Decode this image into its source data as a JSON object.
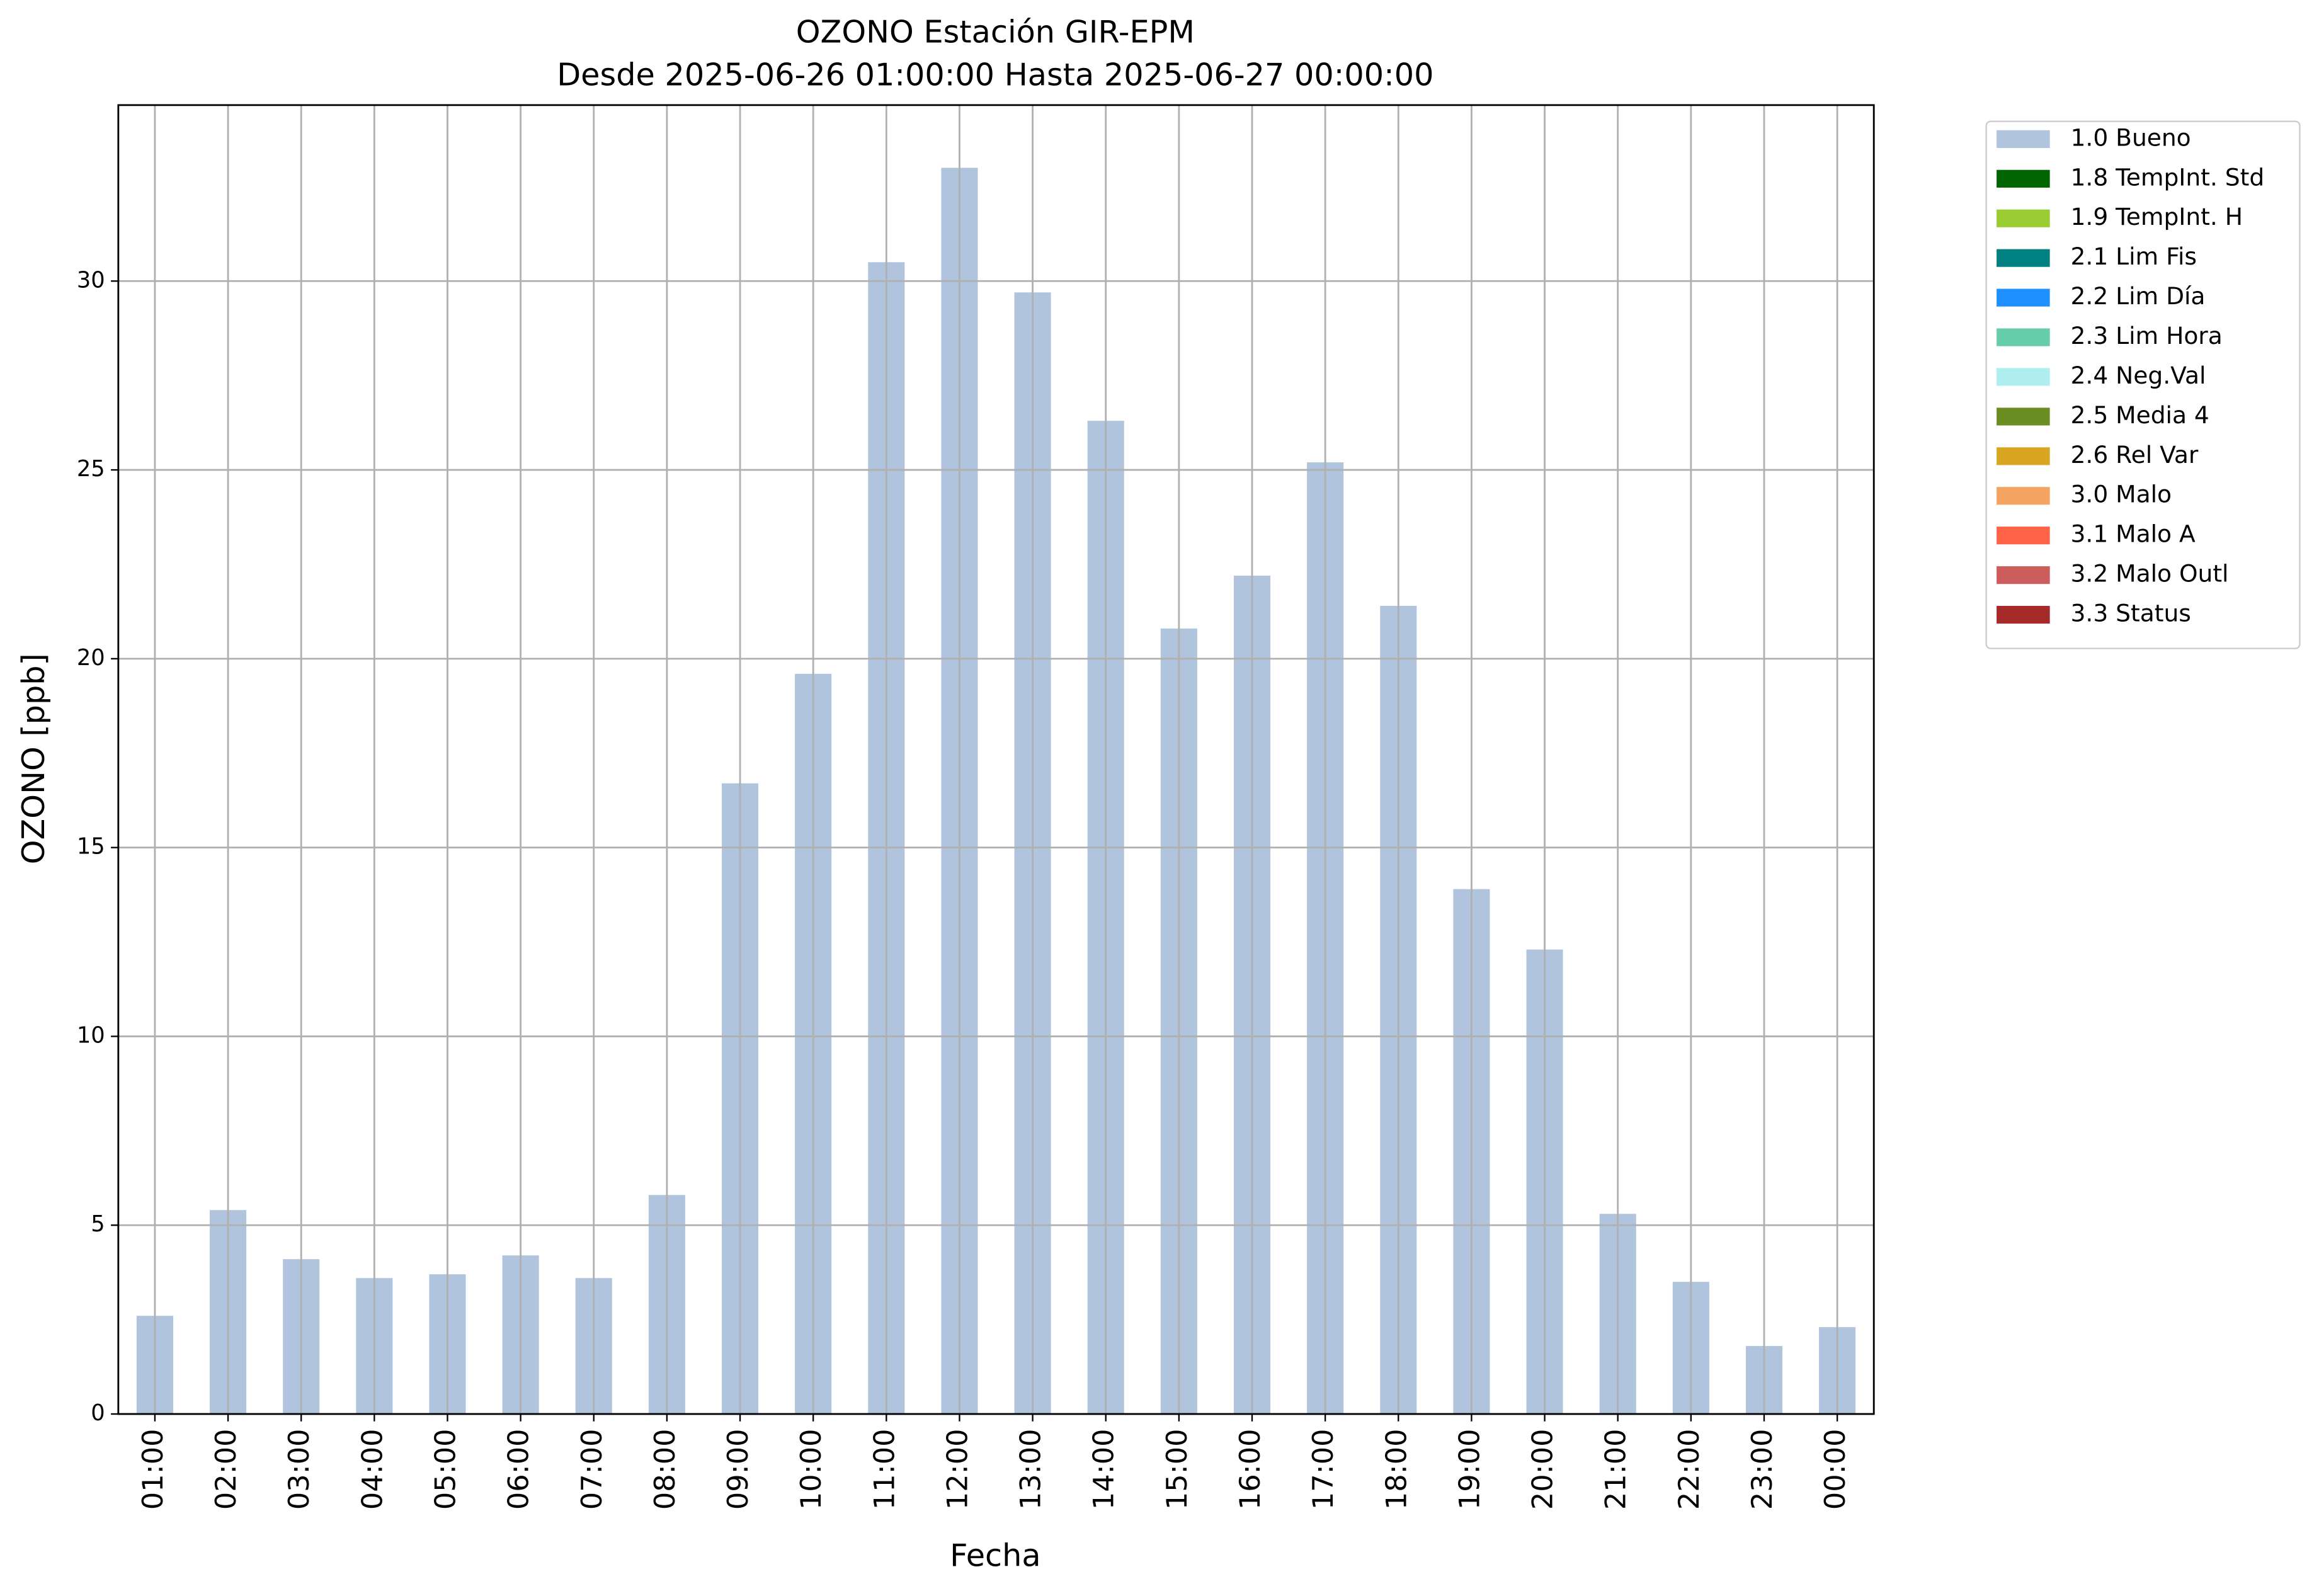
{
  "chart_data": {
    "type": "stacked_bar",
    "title": "OZONO Estación GIR-EPM",
    "subtitle": "Desde 2025-06-26 01:00:00 Hasta 2025-06-27 00:00:00",
    "x_label": "Fecha",
    "y_label": "OZONO [ppb]",
    "categories": [
      "01:00",
      "02:00",
      "03:00",
      "04:00",
      "05:00",
      "06:00",
      "07:00",
      "08:00",
      "09:00",
      "10:00",
      "11:00",
      "12:00",
      "13:00",
      "14:00",
      "15:00",
      "16:00",
      "17:00",
      "18:00",
      "19:00",
      "20:00",
      "21:00",
      "22:00",
      "23:00",
      "00:00"
    ],
    "series": [
      {
        "name": "1.0 Bueno",
        "color": "#b0c4de",
        "values": [
          2.6,
          5.4,
          4.1,
          3.6,
          3.7,
          4.2,
          3.6,
          5.8,
          16.7,
          19.6,
          30.5,
          33.0,
          29.7,
          26.3,
          20.8,
          22.2,
          25.2,
          21.4,
          13.9,
          12.3,
          5.3,
          3.5,
          1.8,
          2.3
        ]
      },
      {
        "name": "1.8 TempInt. Std",
        "color": "#006400",
        "values": [
          0,
          0,
          0,
          0,
          0,
          0,
          0,
          0,
          0,
          0,
          0,
          0,
          0,
          0,
          0,
          0,
          0,
          0,
          0,
          0,
          0,
          0,
          0,
          0
        ]
      },
      {
        "name": "1.9 TempInt. H",
        "color": "#9acd32",
        "values": [
          0,
          0,
          0,
          0,
          0,
          0,
          0,
          0,
          0,
          0,
          0,
          0,
          0,
          0,
          0,
          0,
          0,
          0,
          0,
          0,
          0,
          0,
          0,
          0
        ]
      },
      {
        "name": "2.1 Lim Fis",
        "color": "#008080",
        "values": [
          0,
          0,
          0,
          0,
          0,
          0,
          0,
          0,
          0,
          0,
          0,
          0,
          0,
          0,
          0,
          0,
          0,
          0,
          0,
          0,
          0,
          0,
          0,
          0
        ]
      },
      {
        "name": "2.2 Lim Día",
        "color": "#1e90ff",
        "values": [
          0,
          0,
          0,
          0,
          0,
          0,
          0,
          0,
          0,
          0,
          0,
          0,
          0,
          0,
          0,
          0,
          0,
          0,
          0,
          0,
          0,
          0,
          0,
          0
        ]
      },
      {
        "name": "2.3 Lim Hora",
        "color": "#66cdaa",
        "values": [
          0,
          0,
          0,
          0,
          0,
          0,
          0,
          0,
          0,
          0,
          0,
          0,
          0,
          0,
          0,
          0,
          0,
          0,
          0,
          0,
          0,
          0,
          0,
          0
        ]
      },
      {
        "name": "2.4 Neg.Val",
        "color": "#afeeee",
        "values": [
          0,
          0,
          0,
          0,
          0,
          0,
          0,
          0,
          0,
          0,
          0,
          0,
          0,
          0,
          0,
          0,
          0,
          0,
          0,
          0,
          0,
          0,
          0,
          0
        ]
      },
      {
        "name": "2.5 Media 4",
        "color": "#6b8e23",
        "values": [
          0,
          0,
          0,
          0,
          0,
          0,
          0,
          0,
          0,
          0,
          0,
          0,
          0,
          0,
          0,
          0,
          0,
          0,
          0,
          0,
          0,
          0,
          0,
          0
        ]
      },
      {
        "name": "2.6 Rel Var",
        "color": "#daa520",
        "values": [
          0,
          0,
          0,
          0,
          0,
          0,
          0,
          0,
          0,
          0,
          0,
          0,
          0,
          0,
          0,
          0,
          0,
          0,
          0,
          0,
          0,
          0,
          0,
          0
        ]
      },
      {
        "name": "3.0 Malo",
        "color": "#f4a460",
        "values": [
          0,
          0,
          0,
          0,
          0,
          0,
          0,
          0,
          0,
          0,
          0,
          0,
          0,
          0,
          0,
          0,
          0,
          0,
          0,
          0,
          0,
          0,
          0,
          0
        ]
      },
      {
        "name": "3.1 Malo A",
        "color": "#ff6347",
        "values": [
          0,
          0,
          0,
          0,
          0,
          0,
          0,
          0,
          0,
          0,
          0,
          0,
          0,
          0,
          0,
          0,
          0,
          0,
          0,
          0,
          0,
          0,
          0,
          0
        ]
      },
      {
        "name": "3.2 Malo Outl",
        "color": "#cd5c5c",
        "values": [
          0,
          0,
          0,
          0,
          0,
          0,
          0,
          0,
          0,
          0,
          0,
          0,
          0,
          0,
          0,
          0,
          0,
          0,
          0,
          0,
          0,
          0,
          0,
          0
        ]
      },
      {
        "name": "3.3 Status",
        "color": "#a52a2a",
        "values": [
          0,
          0,
          0,
          0,
          0,
          0,
          0,
          0,
          0,
          0,
          0,
          0,
          0,
          0,
          0,
          0,
          0,
          0,
          0,
          0,
          0,
          0,
          0,
          0
        ]
      }
    ],
    "ylim": [
      0,
      34.66
    ],
    "yticks": [
      0,
      5,
      10,
      15,
      20,
      25,
      30
    ],
    "grid": true,
    "legend": "outside-right"
  }
}
